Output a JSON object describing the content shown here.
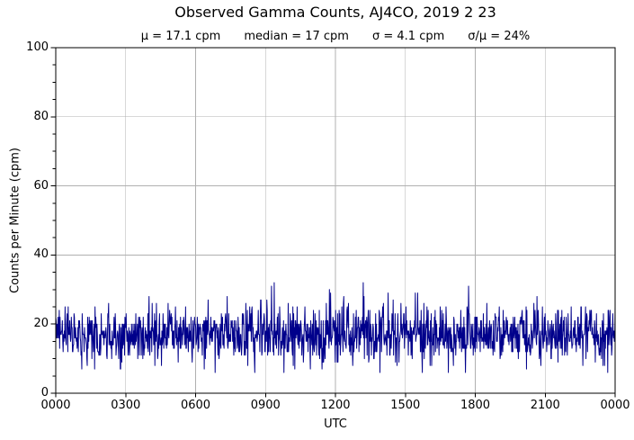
{
  "title": "Observed Gamma Counts, AJ4CO, 2019 2 23",
  "subtitle": {
    "mu": "μ = 17.1 cpm",
    "median": "median = 17 cpm",
    "sigma": "σ = 4.1 cpm",
    "sigma_over_mu": "σ/μ = 24%"
  },
  "axes": {
    "ylabel": "Counts per Minute (cpm)",
    "xlabel": "UTC",
    "y_tick_labels": [
      "0",
      "20",
      "40",
      "60",
      "80",
      "100"
    ],
    "x_tick_labels": [
      "0000",
      "0300",
      "0600",
      "0900",
      "1200",
      "1500",
      "1800",
      "2100",
      "0000"
    ]
  },
  "chart_data": {
    "type": "line",
    "title": "Observed Gamma Counts, AJ4CO, 2019 2 23",
    "xlabel": "UTC",
    "ylabel": "Counts per Minute (cpm)",
    "xlim_minutes": [
      0,
      1440
    ],
    "ylim": [
      0,
      100
    ],
    "x_major_ticks_minutes": [
      0,
      180,
      360,
      540,
      720,
      900,
      1080,
      1260,
      1440
    ],
    "x_tick_labels": [
      "0000",
      "0300",
      "0600",
      "0900",
      "1200",
      "1500",
      "1800",
      "2100",
      "0000"
    ],
    "y_major_ticks": [
      0,
      20,
      40,
      60,
      80,
      100
    ],
    "y_minor_tick_step": 5,
    "grid": true,
    "legend": "none",
    "grid_color": "#b0b0b0",
    "line_color": "#00008b",
    "frame_color": "#000000",
    "n_points": 1440,
    "sample_interval_minutes": 1,
    "stats": {
      "mean_cpm": 17.1,
      "median_cpm": 17,
      "sigma_cpm": 4.1,
      "sigma_over_mu_percent": 24
    },
    "observed_min_cpm": 6,
    "observed_max_cpm": 32,
    "distribution": "poisson",
    "poisson_lambda": 17,
    "prng_seed": 20190223,
    "notable_points": [
      {
        "minute": 100,
        "cpm": 7
      },
      {
        "minute": 512,
        "cpm": 6
      },
      {
        "minute": 562,
        "cpm": 32
      },
      {
        "minute": 1412,
        "cpm": 8
      }
    ]
  }
}
